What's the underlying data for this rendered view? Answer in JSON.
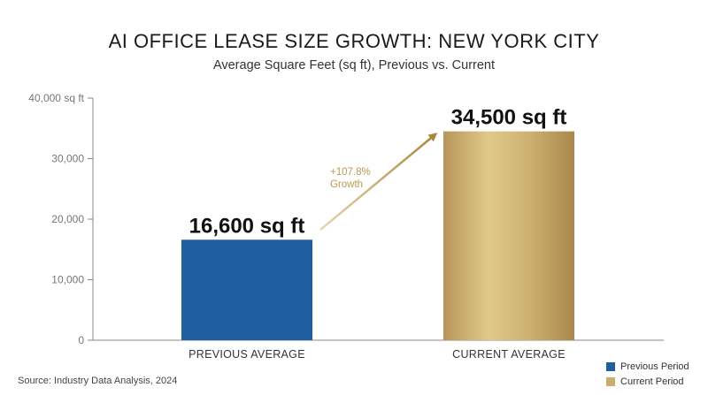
{
  "chart_data": {
    "type": "bar",
    "title": "AI OFFICE LEASE SIZE GROWTH: NEW YORK CITY",
    "subtitle": "Average Square Feet (sq ft), Previous vs. Current",
    "categories": [
      "PREVIOUS AVERAGE",
      "CURRENT AVERAGE"
    ],
    "values": [
      16600,
      34500
    ],
    "data_labels": [
      "16,600 sq ft",
      "34,500 sq ft"
    ],
    "colors": [
      "#1f5f9f",
      "#c9ad6a"
    ],
    "ylim": [
      0,
      40000
    ],
    "yticks": [
      0,
      10000,
      20000,
      30000,
      40000
    ],
    "ytick_labels": [
      "0",
      "10,000",
      "20,000",
      "30,000",
      "40,000 sq ft"
    ],
    "grid": false,
    "annotation": {
      "line1": "+107.8%",
      "line2": "Growth"
    },
    "legend": {
      "placement": "bottom-right",
      "entries": [
        {
          "label": "Previous Period",
          "color": "#1f5f9f"
        },
        {
          "label": "Current Period",
          "color": "#c9ad6a"
        }
      ]
    }
  },
  "source": "Source: Industry Data Analysis, 2024"
}
